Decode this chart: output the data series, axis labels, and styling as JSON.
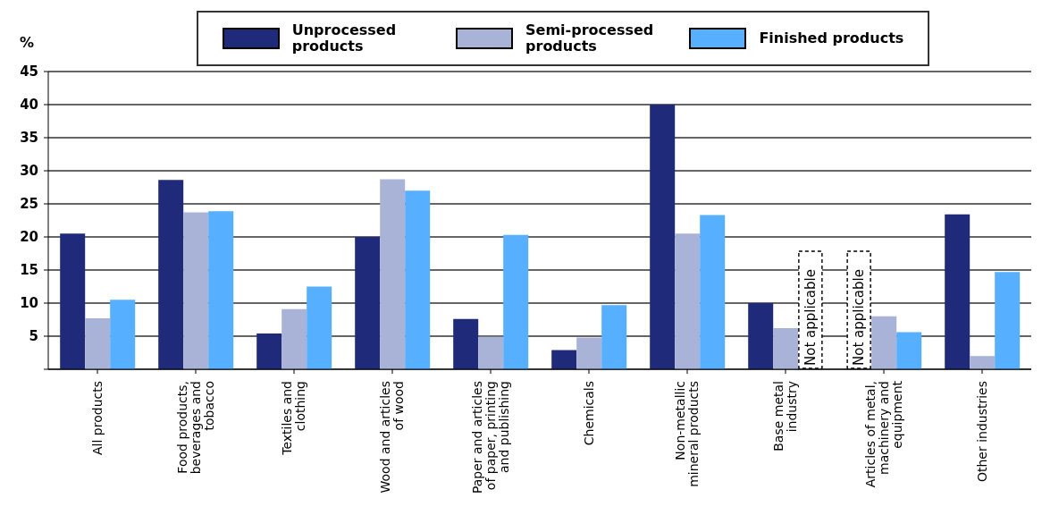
{
  "chart_data": {
    "type": "bar",
    "ylabel": "%",
    "categories": [
      "All products",
      "Food products, beverages and tobacco",
      "Textiles and clothing",
      "Wood and articles of wood",
      "Paper and articles of paper, printing and publishing",
      "Chemicals",
      "Non-metallic mineral products",
      "Base metal industry",
      "Articles of metal, machinery and equipment",
      "Other industries"
    ],
    "series": [
      {
        "name": "Unprocessed products",
        "color": "#1f2a7a",
        "values": [
          20.5,
          28.6,
          5.4,
          20.0,
          7.6,
          2.9,
          40.0,
          10.0,
          null,
          23.4
        ]
      },
      {
        "name": "Semi-processed products",
        "color": "#a9b3d8",
        "values": [
          7.7,
          23.7,
          9.1,
          28.7,
          4.9,
          4.8,
          20.5,
          6.2,
          8.0,
          2.0
        ]
      },
      {
        "name": "Finished products",
        "color": "#56b0ff",
        "values": [
          10.5,
          23.9,
          12.5,
          27.0,
          20.3,
          9.7,
          23.3,
          null,
          5.6,
          14.7
        ]
      }
    ],
    "annotations": [
      "Not applicable",
      "Not applicable"
    ],
    "ylim": [
      0,
      45
    ],
    "yticks": [
      {
        "value": 0,
        "label": null
      },
      5,
      10,
      15,
      20,
      25,
      30,
      35,
      40,
      45
    ],
    "grid": "y",
    "legend": "top"
  }
}
